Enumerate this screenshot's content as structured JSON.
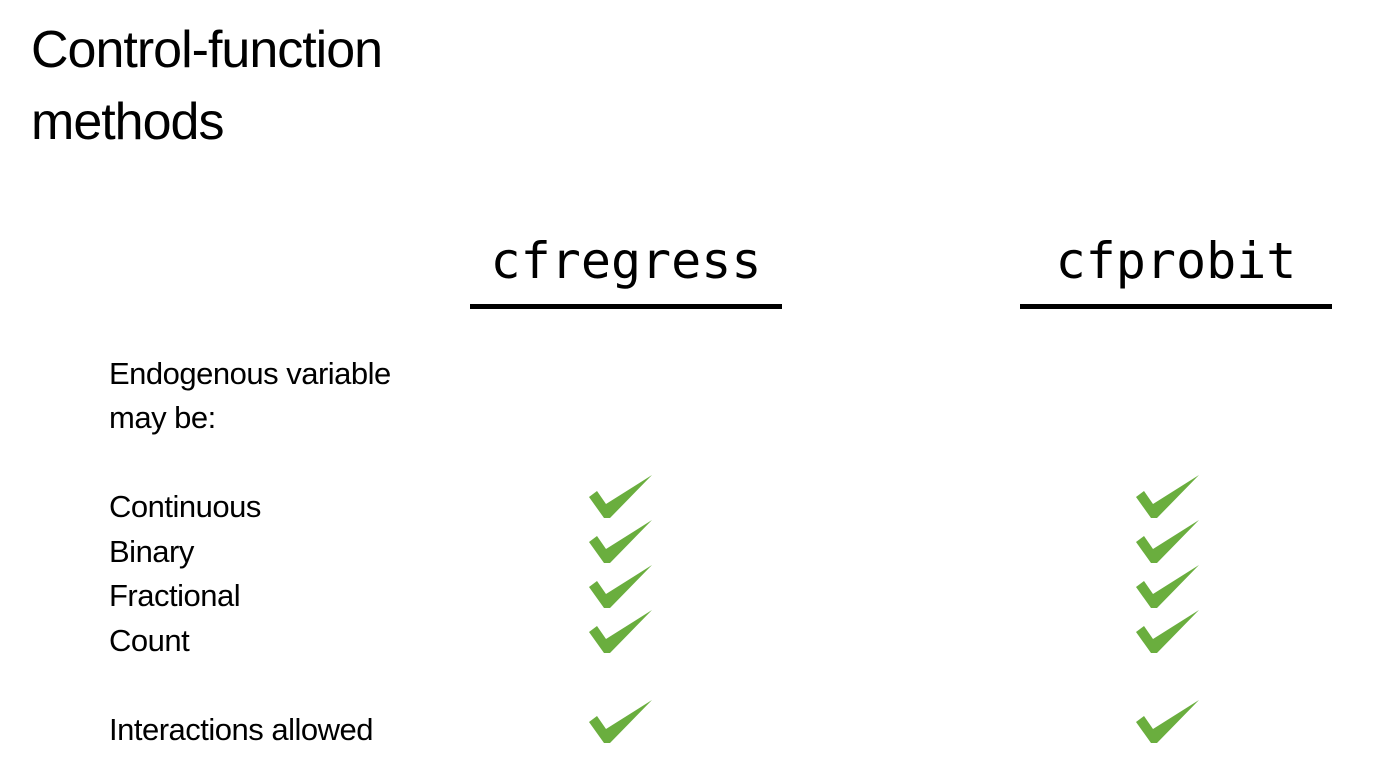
{
  "title": [
    "Control-function",
    "methods"
  ],
  "columns": [
    "cfregress",
    "cfprobit"
  ],
  "intro": [
    "Endogenous variable",
    "may be:"
  ],
  "rows": [
    {
      "label": "Continuous",
      "cfregress": true,
      "cfprobit": true
    },
    {
      "label": "Binary",
      "cfregress": true,
      "cfprobit": true
    },
    {
      "label": "Fractional",
      "cfregress": true,
      "cfprobit": true
    },
    {
      "label": "Count",
      "cfregress": true,
      "cfprobit": true
    },
    {
      "label": "Interactions allowed",
      "cfregress": true,
      "cfprobit": true
    }
  ],
  "check_icon": "checkmark-icon",
  "check_color": "#6aae3e"
}
